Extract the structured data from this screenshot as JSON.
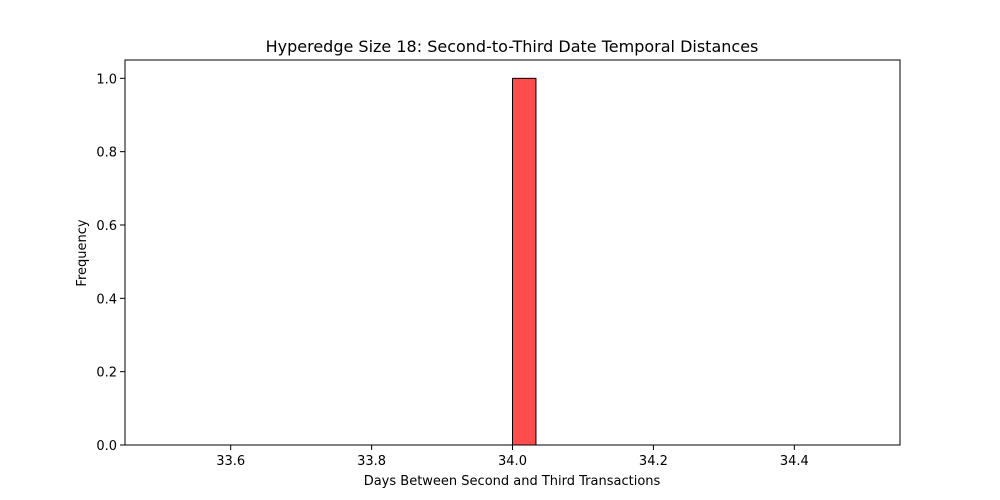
{
  "chart_data": {
    "type": "bar",
    "title": "Hyperedge Size 18: Second-to-Third Date Temporal Distances",
    "xlabel": "Days Between Second and Third Transactions",
    "ylabel": "Frequency",
    "xlim": [
      33.45,
      34.55
    ],
    "ylim": [
      0,
      1.05
    ],
    "x_ticks": [
      {
        "value": 33.6,
        "label": "33.6"
      },
      {
        "value": 33.8,
        "label": "33.8"
      },
      {
        "value": 34.0,
        "label": "34.0"
      },
      {
        "value": 34.2,
        "label": "34.2"
      },
      {
        "value": 34.4,
        "label": "34.4"
      }
    ],
    "y_ticks": [
      {
        "value": 0.0,
        "label": "0.0"
      },
      {
        "value": 0.2,
        "label": "0.2"
      },
      {
        "value": 0.4,
        "label": "0.4"
      },
      {
        "value": 0.6,
        "label": "0.6"
      },
      {
        "value": 0.8,
        "label": "0.8"
      },
      {
        "value": 1.0,
        "label": "1.0"
      }
    ],
    "bins": {
      "start": 33.5,
      "end": 34.5,
      "count": 30
    },
    "bars": [
      {
        "x0": 34.0,
        "x1": 34.0333,
        "value": 1
      }
    ],
    "bar_color": "#ff4d4d",
    "grid": false,
    "legend": "none"
  }
}
